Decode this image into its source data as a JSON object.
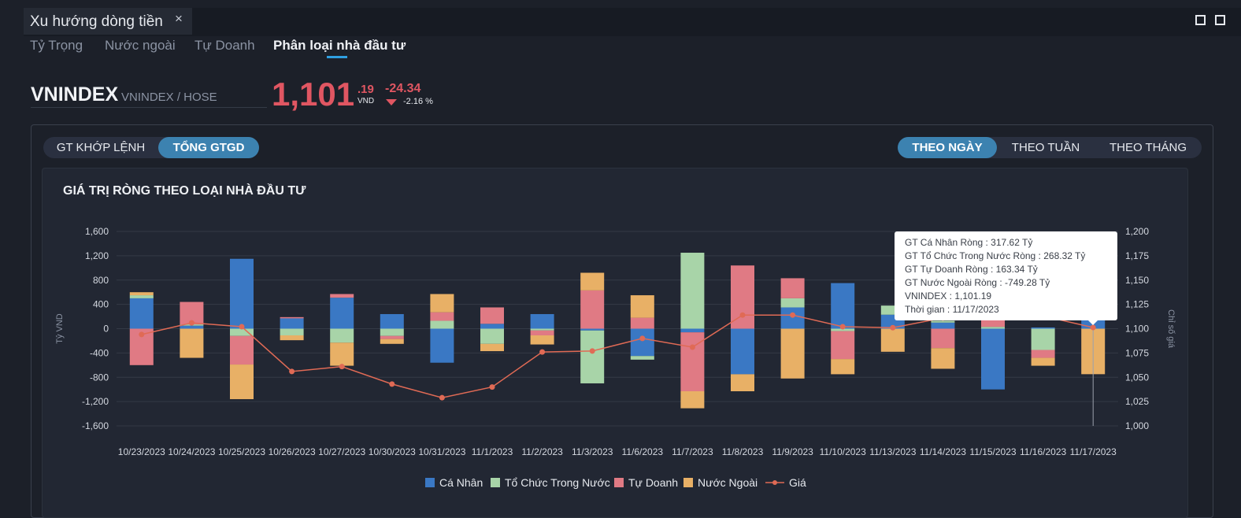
{
  "panel": {
    "title": "Xu hướng dòng tiền",
    "close_icon": "×"
  },
  "subtabs": [
    {
      "label": "Tỷ Trọng"
    },
    {
      "label": "Nước ngoài"
    },
    {
      "label": "Tự Doanh"
    },
    {
      "label": "Phân loại nhà đầu tư"
    }
  ],
  "ticker": {
    "symbol": "VNINDEX",
    "exchange": "VNINDEX / HOSE",
    "price_int": "1,101",
    "price_dec": ".19",
    "unit": "VND",
    "change": "-24.34",
    "change_pct": "-2.16 %"
  },
  "value_toggle": [
    {
      "label": "GT KHỚP LỆNH"
    },
    {
      "label": "TỔNG GTGD"
    }
  ],
  "period_toggle": [
    {
      "label": "THEO NGÀY"
    },
    {
      "label": "THEO TUẦN"
    },
    {
      "label": "THEO THÁNG"
    }
  ],
  "colors": {
    "ca_nhan": "#3a78c4",
    "to_chuc": "#a8d4a8",
    "tu_doanh": "#e07a84",
    "nuoc_ngoai": "#e8b066",
    "gia": "#e06a55",
    "down": "#e05662",
    "accent": "#3c82b0"
  },
  "chart_data": {
    "type": "bar",
    "stacked": true,
    "title": "GIÁ TRỊ RÒNG THEO LOẠI NHÀ ĐẦU TƯ",
    "ylabel": "Tỷ VND",
    "y2label": "Chỉ số giá",
    "ylim": [
      -1600,
      1600
    ],
    "y2lim": [
      1000,
      1200
    ],
    "yticks": [
      "1,600",
      "1,200",
      "800",
      "400",
      "0",
      "-400",
      "-800",
      "-1,200",
      "-1,600"
    ],
    "y2ticks": [
      "1,200",
      "1,175",
      "1,150",
      "1,125",
      "1,100",
      "1,075",
      "1,050",
      "1,025",
      "1,000"
    ],
    "categories": [
      "10/23/2023",
      "10/24/2023",
      "10/25/2023",
      "10/26/2023",
      "10/27/2023",
      "10/30/2023",
      "10/31/2023",
      "11/1/2023",
      "11/2/2023",
      "11/3/2023",
      "11/6/2023",
      "11/7/2023",
      "11/8/2023",
      "11/9/2023",
      "11/10/2023",
      "11/13/2023",
      "11/14/2023",
      "11/15/2023",
      "11/16/2023",
      "11/17/2023"
    ],
    "series": [
      {
        "name": "Cá Nhân",
        "values": [
          500,
          50,
          1150,
          170,
          510,
          240,
          -560,
          80,
          240,
          -30,
          -450,
          -60,
          -750,
          350,
          750,
          230,
          100,
          -1000,
          20,
          317.62
        ]
      },
      {
        "name": "Tổ Chức Trong Nước",
        "values": [
          50,
          20,
          -120,
          -110,
          -230,
          -120,
          130,
          -250,
          -30,
          -870,
          -60,
          1250,
          0,
          150,
          -40,
          150,
          30,
          30,
          -350,
          268.32
        ]
      },
      {
        "name": "Tự Doanh",
        "values": [
          -600,
          370,
          -470,
          20,
          60,
          -50,
          140,
          270,
          -80,
          630,
          180,
          -970,
          1040,
          330,
          -460,
          0,
          -320,
          150,
          -130,
          163.34
        ]
      },
      {
        "name": "Nước Ngoài",
        "values": [
          50,
          -480,
          -570,
          -80,
          -380,
          -80,
          300,
          -120,
          -150,
          290,
          370,
          -280,
          -280,
          -820,
          -250,
          -380,
          -340,
          0,
          -130,
          -749.28
        ]
      }
    ],
    "line": {
      "name": "Giá",
      "values": [
        1094,
        1106,
        1102,
        1056,
        1061,
        1043,
        1029,
        1040,
        1076,
        1077,
        1090,
        1081,
        1114,
        1114,
        1102,
        1101,
        1111,
        1125,
        1113,
        1101.19
      ]
    },
    "tooltip": [
      "GT Cá Nhân Ròng  : 317.62 Tỷ",
      "GT Tổ Chức Trong Nước Ròng : 268.32 Tỷ",
      "GT Tự Doanh Ròng : 163.34 Tỷ",
      "GT Nước Ngoài Ròng : -749.28 Tỷ",
      "VNINDEX : 1,101.19",
      "Thời gian : 11/17/2023"
    ],
    "legend": [
      "Cá Nhân",
      "Tổ Chức Trong Nước",
      "Tự Doanh",
      "Nước Ngoài",
      "Giá"
    ],
    "legend_position": "bottom-center",
    "grid": true
  }
}
